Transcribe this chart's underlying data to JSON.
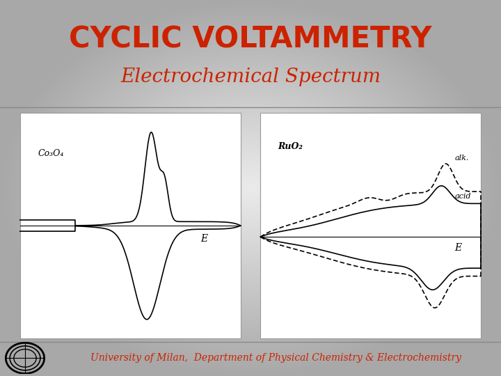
{
  "title": "CYCLIC VOLTAMMETRY",
  "subtitle": "Electrochemical Spectrum",
  "footer": "University of Milan,  Department of Physical Chemistry & Electrochemistry",
  "title_color": "#CC2200",
  "subtitle_color": "#CC2200",
  "footer_color": "#CC2200",
  "bg_color_light": "#E8E8E8",
  "bg_color_dark": "#AAAAAA",
  "panel_bg": "#FFFFFF",
  "label_co3o4": "Co₃O₄",
  "label_ruo2": "RuO₂",
  "label_E": "E",
  "label_alk": "alk.",
  "label_acid": "acid"
}
